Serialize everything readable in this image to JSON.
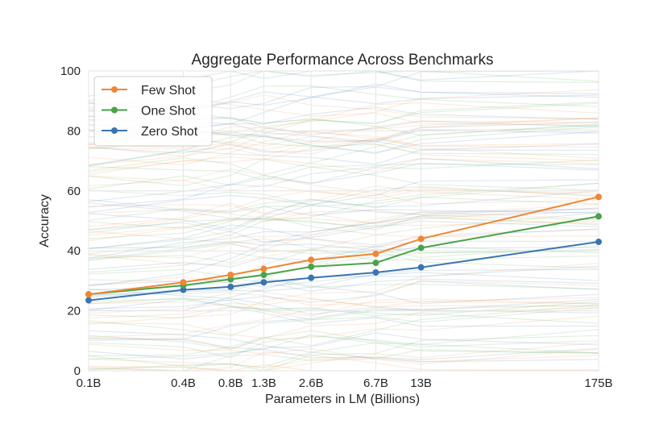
{
  "chart_data": {
    "type": "line",
    "title": "Aggregate Performance Across Benchmarks",
    "xlabel": "Parameters in LM (Billions)",
    "ylabel": "Accuracy",
    "x_tick_labels": [
      "0.1B",
      "0.4B",
      "0.8B",
      "1.3B",
      "2.6B",
      "6.7B",
      "13B",
      "175B"
    ],
    "x_values": [
      0.1,
      0.4,
      0.8,
      1.3,
      2.6,
      6.7,
      13,
      175
    ],
    "ylim": [
      0,
      100
    ],
    "y_ticks": [
      0,
      20,
      40,
      60,
      80,
      100
    ],
    "grid": true,
    "legend_position": "top-left",
    "series": [
      {
        "name": "Few Shot",
        "color": "#ef8636",
        "values": [
          25.5,
          29.5,
          32,
          34,
          37,
          39,
          44,
          58
        ]
      },
      {
        "name": "One Shot",
        "color": "#4aa34a",
        "values": [
          25.5,
          28.5,
          30.5,
          32,
          34.7,
          36,
          41,
          51.5
        ]
      },
      {
        "name": "Zero Shot",
        "color": "#3b75af",
        "values": [
          23.5,
          27,
          28,
          29.5,
          31,
          32.8,
          34.5,
          43
        ]
      }
    ]
  }
}
